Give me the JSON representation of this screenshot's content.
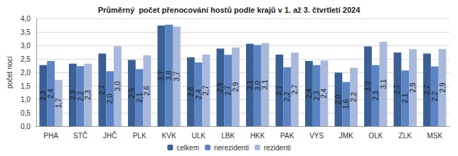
{
  "chart_data": {
    "type": "bar",
    "title": "Průměrný  počet přenocování hostů podle krajů v 1. až 3. čtvrtletí 2024",
    "y_label": "počet nocí",
    "categories": [
      "PHA",
      "STČ",
      "JHČ",
      "PLK",
      "KVK",
      "ULK",
      "LBK",
      "HKK",
      "PAK",
      "VYS",
      "JMK",
      "OLK",
      "ZLK",
      "MSK"
    ],
    "series": [
      {
        "name": "celkem",
        "color": "#3a5f94",
        "values": [
          2.27,
          2.32,
          2.7,
          2.46,
          3.74,
          2.56,
          2.88,
          3.06,
          2.66,
          2.42,
          1.99,
          2.96,
          2.74,
          2.7
        ],
        "value_labels": [
          "2,3",
          "2,3",
          "2,7",
          "2,5",
          "3,7",
          "2,6",
          "2,9",
          "3,1",
          "2,7",
          "2,4",
          "2,0",
          "3,0",
          "2,7",
          "2,7"
        ]
      },
      {
        "name": "nerezidenti",
        "color": "#5b84c4",
        "values": [
          2.42,
          2.23,
          2.04,
          2.12,
          3.77,
          2.37,
          2.65,
          3.01,
          2.19,
          2.27,
          1.64,
          2.27,
          2.07,
          2.22
        ],
        "value_labels": [
          "2,4",
          "2,2",
          "2,0",
          "2,1",
          "3,8",
          "2,4",
          "2,7",
          "3,0",
          "2,2",
          "2,3",
          "1,6",
          "2,3",
          "2,1",
          "2,2"
        ]
      },
      {
        "name": "rezidenti",
        "color": "#a9b9dc",
        "values": [
          1.72,
          2.32,
          2.97,
          2.63,
          3.7,
          2.66,
          2.92,
          3.08,
          2.73,
          2.44,
          2.17,
          3.13,
          2.86,
          2.87
        ],
        "value_labels": [
          "1,7",
          "2,3",
          "3,0",
          "2,6",
          "3,7",
          "2,7",
          "2,9",
          "3,1",
          "2,7",
          "2,4",
          "2,2",
          "3,1",
          "2,9",
          "2,9"
        ]
      }
    ],
    "ylim": [
      0,
      4
    ],
    "yticks": [
      {
        "value": 0,
        "label": "0,0"
      },
      {
        "value": 0.5,
        "label": "0,5"
      },
      {
        "value": 1,
        "label": "1,0"
      },
      {
        "value": 1.5,
        "label": "1,5"
      },
      {
        "value": 2,
        "label": "2,0"
      },
      {
        "value": 2.5,
        "label": "2,5"
      },
      {
        "value": 3,
        "label": "3,0"
      },
      {
        "value": 3.5,
        "label": "3,5"
      },
      {
        "value": 4,
        "label": "4,0"
      }
    ],
    "grid": true,
    "legend": "bottom",
    "data_labels": true
  }
}
